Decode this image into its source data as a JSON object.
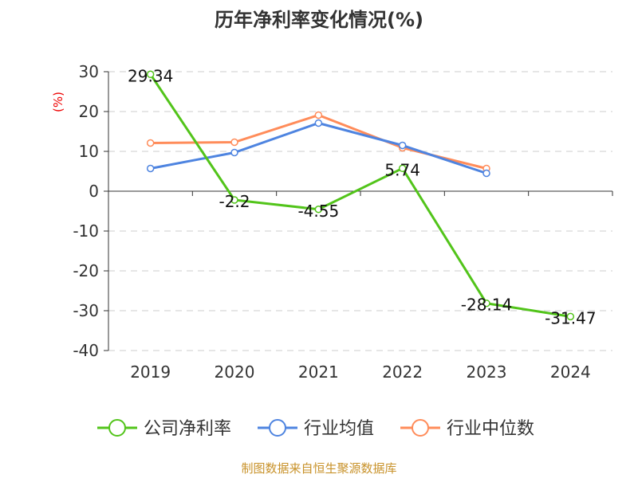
{
  "chart_data": {
    "type": "line",
    "title": "历年净利率变化情况(%)",
    "ylabel": "(%)",
    "xlabel": "",
    "categories": [
      "2019",
      "2020",
      "2021",
      "2022",
      "2023",
      "2024"
    ],
    "ylim": [
      -40,
      30
    ],
    "yticks": [
      30,
      20,
      10,
      0,
      -10,
      -20,
      -30,
      -40
    ],
    "grid": true,
    "legend_position": "bottom",
    "series": [
      {
        "name": "公司净利率",
        "color": "#52c41a",
        "values": [
          29.34,
          -2.2,
          -4.55,
          5.74,
          -28.14,
          -31.47
        ],
        "labels": [
          "29.34",
          "-2.2",
          "-4.55",
          "5.74",
          "-28.14",
          "-31.47"
        ]
      },
      {
        "name": "行业均值",
        "color": "#4e84e0",
        "values": [
          5.7,
          9.7,
          17.1,
          11.5,
          4.5,
          null
        ]
      },
      {
        "name": "行业中位数",
        "color": "#ff8c5a",
        "values": [
          12.1,
          12.3,
          19.1,
          10.9,
          5.7,
          null
        ]
      }
    ],
    "source": "制图数据来自恒生聚源数据库"
  }
}
